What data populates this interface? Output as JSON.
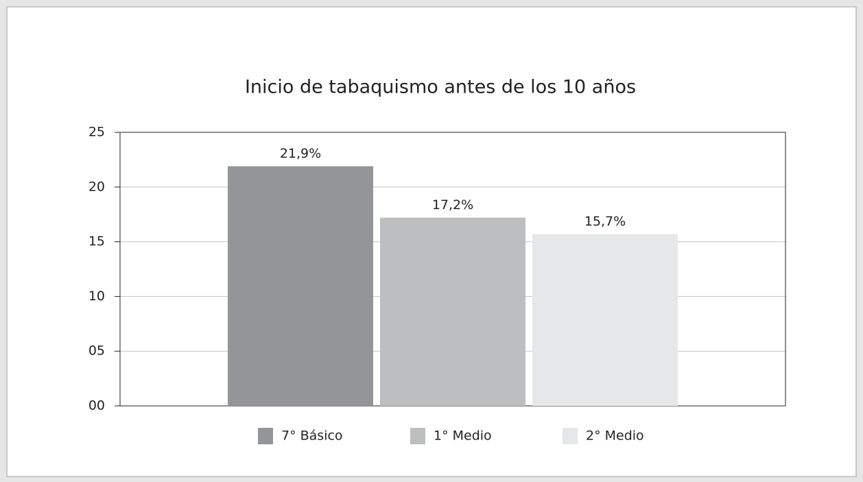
{
  "chart_data": {
    "type": "bar",
    "title": "Inicio de tabaquismo antes de los 10 años",
    "categories": [
      null
    ],
    "series": [
      {
        "name": "7° Básico",
        "color": "#939598",
        "values": [
          21.9
        ],
        "value_labels": [
          "21,9%"
        ]
      },
      {
        "name": "1° Medio",
        "color": "#bcbec0",
        "values": [
          17.2
        ],
        "value_labels": [
          "17,2%"
        ]
      },
      {
        "name": "2° Medio",
        "color": "#e6e7e8",
        "values": [
          15.7
        ],
        "value_labels": [
          "15,7%"
        ]
      }
    ],
    "ylim": [
      0,
      25
    ],
    "yticks": [
      {
        "value": 0,
        "label": "00"
      },
      {
        "value": 5,
        "label": "05"
      },
      10,
      15,
      20,
      25
    ],
    "grid": true,
    "legend": "bottom"
  }
}
